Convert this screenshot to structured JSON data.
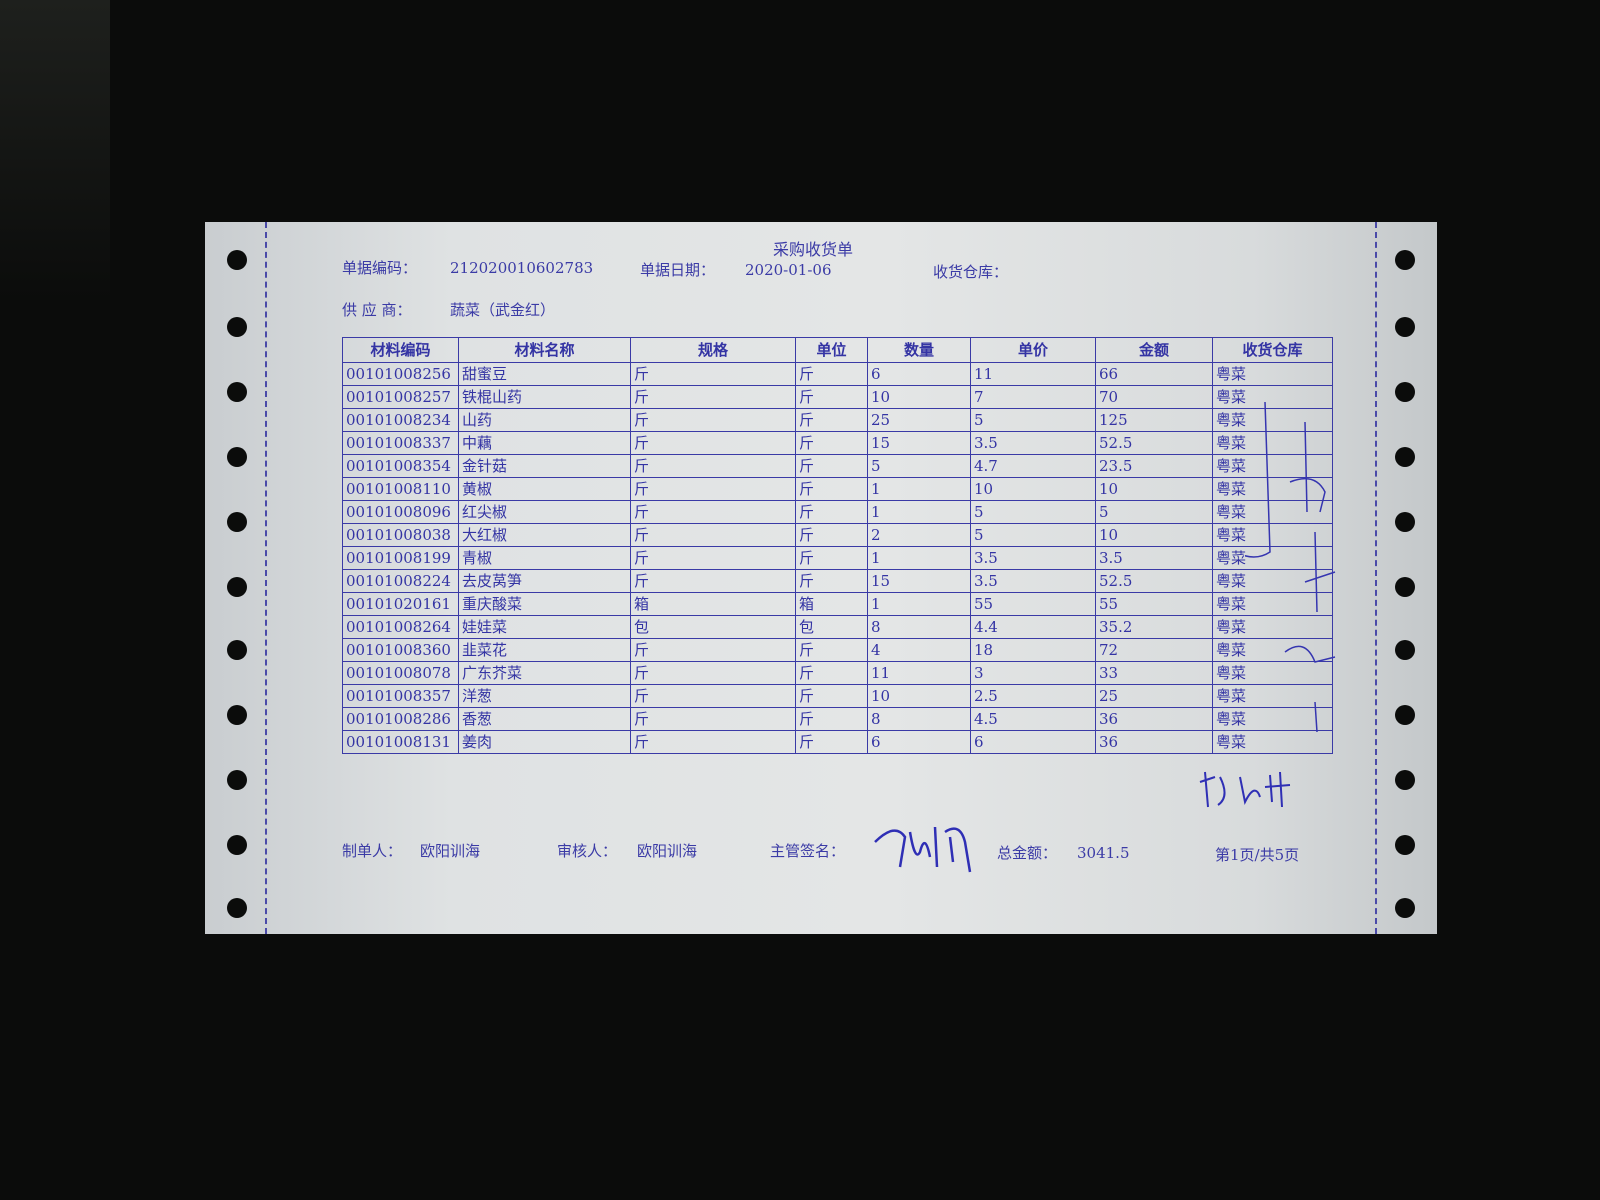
{
  "document": {
    "title": "采购收货单",
    "doc_no_label": "单据编码：",
    "doc_no": "212020010602783",
    "date_label": "单据日期：",
    "date": "2020-01-06",
    "warehouse_label": "收货仓库：",
    "supplier_label": "供 应 商：",
    "supplier": "蔬菜（武金红）"
  },
  "table": {
    "headers": [
      "材料编码",
      "材料名称",
      "规格",
      "单位",
      "数量",
      "单价",
      "金额",
      "收货仓库"
    ],
    "rows": [
      [
        "00101008256",
        "甜蜜豆",
        "斤",
        "斤",
        "6",
        "11",
        "66",
        "粤菜"
      ],
      [
        "00101008257",
        "铁棍山药",
        "斤",
        "斤",
        "10",
        "7",
        "70",
        "粤菜"
      ],
      [
        "00101008234",
        "山药",
        "斤",
        "斤",
        "25",
        "5",
        "125",
        "粤菜"
      ],
      [
        "00101008337",
        "中藕",
        "斤",
        "斤",
        "15",
        "3.5",
        "52.5",
        "粤菜"
      ],
      [
        "00101008354",
        "金针菇",
        "斤",
        "斤",
        "5",
        "4.7",
        "23.5",
        "粤菜"
      ],
      [
        "00101008110",
        "黄椒",
        "斤",
        "斤",
        "1",
        "10",
        "10",
        "粤菜"
      ],
      [
        "00101008096",
        "红尖椒",
        "斤",
        "斤",
        "1",
        "5",
        "5",
        "粤菜"
      ],
      [
        "00101008038",
        "大红椒",
        "斤",
        "斤",
        "2",
        "5",
        "10",
        "粤菜"
      ],
      [
        "00101008199",
        "青椒",
        "斤",
        "斤",
        "1",
        "3.5",
        "3.5",
        "粤菜"
      ],
      [
        "00101008224",
        "去皮莴笋",
        "斤",
        "斤",
        "15",
        "3.5",
        "52.5",
        "粤菜"
      ],
      [
        "00101020161",
        "重庆酸菜",
        "箱",
        "箱",
        "1",
        "55",
        "55",
        "粤菜"
      ],
      [
        "00101008264",
        "娃娃菜",
        "包",
        "包",
        "8",
        "4.4",
        "35.2",
        "粤菜"
      ],
      [
        "00101008360",
        "韭菜花",
        "斤",
        "斤",
        "4",
        "18",
        "72",
        "粤菜"
      ],
      [
        "00101008078",
        "广东芥菜",
        "斤",
        "斤",
        "11",
        "3",
        "33",
        "粤菜"
      ],
      [
        "00101008357",
        "洋葱",
        "斤",
        "斤",
        "10",
        "2.5",
        "25",
        "粤菜"
      ],
      [
        "00101008286",
        "香葱",
        "斤",
        "斤",
        "8",
        "4.5",
        "36",
        "粤菜"
      ],
      [
        "00101008131",
        "姜肉",
        "斤",
        "斤",
        "6",
        "6",
        "36",
        "粤菜"
      ]
    ]
  },
  "footer": {
    "maker_label": "制单人：",
    "maker": "欧阳训海",
    "reviewer_label": "审核人：",
    "reviewer": "欧阳训海",
    "supervisor_label": "主管签名：",
    "total_label": "总金额：",
    "total": "3041.5",
    "page": "第1页/共5页"
  },
  "colors": {
    "ink": "#3a3aa6",
    "paper": "#e2e4e4",
    "background": "#0b0c0b"
  }
}
